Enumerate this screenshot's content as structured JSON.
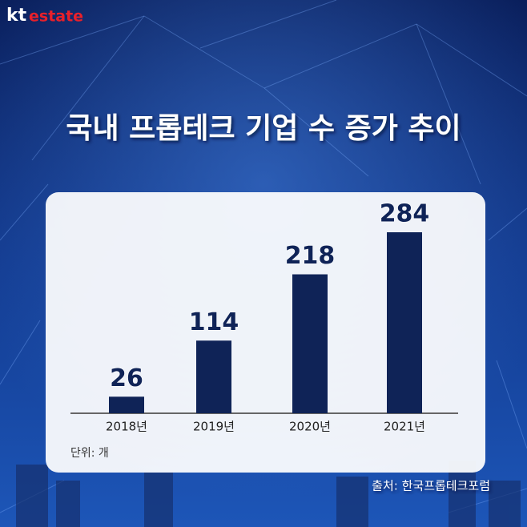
{
  "logo": {
    "brand": "kt",
    "name": "estate"
  },
  "chart_data": {
    "type": "bar",
    "title": "국내 프롭테크 기업 수 증가 추이",
    "categories": [
      "2018년",
      "2019년",
      "2020년",
      "2021년"
    ],
    "values": [
      26,
      114,
      218,
      284
    ],
    "color": "#0f2357",
    "unit_note": "단위: 개",
    "source": "출처: 한국프롭테크포럼"
  }
}
